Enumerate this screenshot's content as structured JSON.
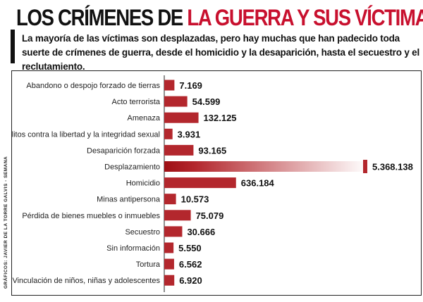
{
  "header": {
    "title_part1": "LOS CRÍMENES DE ",
    "title_part2": "LA GUERRA Y SUS VÍCTIMAS",
    "subtitle": "La mayoría de las víctimas son desplazadas, pero hay muchas que han padecido toda suerte de crímenes de guerra, desde el homicidio y la desaparición, hasta el secuestro y el reclutamiento."
  },
  "credit": "GRÁFICOS: JAVIER DE LA TORRE GALVIS - SEMANA",
  "colors": {
    "title_accent": "#c8102e",
    "bar": "#b3272d",
    "bar_gradient_start": "#9e0f14",
    "bar_gradient_end": "#ffffff"
  },
  "chart_data": {
    "type": "bar",
    "orientation": "horizontal",
    "title": "LOS CRÍMENES DE LA GUERRA Y SUS VÍCTIMAS",
    "xlabel": "",
    "ylabel": "",
    "categories": [
      "Abandono o despojo forzado de tierras",
      "Acto terrorista",
      "Amenaza",
      "Delitos contra la libertad y la integridad sexual",
      "Desaparición forzada",
      "Desplazamiento",
      "Homicidio",
      "Minas antipersona",
      "Pérdida de bienes muebles o inmuebles",
      "Secuestro",
      "Sin información",
      "Tortura",
      "Vinculación de niños, niñas y adolescentes"
    ],
    "values": [
      7169,
      54599,
      132125,
      3931,
      93165,
      5368138,
      636184,
      10573,
      75079,
      30666,
      5550,
      6562,
      6920
    ],
    "value_labels": [
      "7.169",
      "54.599",
      "132.125",
      "3.931",
      "93.165",
      "5.368.138",
      "636.184",
      "10.573",
      "75.079",
      "30.666",
      "5.550",
      "6.562",
      "6.920"
    ],
    "note": "Bars drawn with non-linear (compressed) scale; 'Desplazamiento' bar fades into white."
  }
}
